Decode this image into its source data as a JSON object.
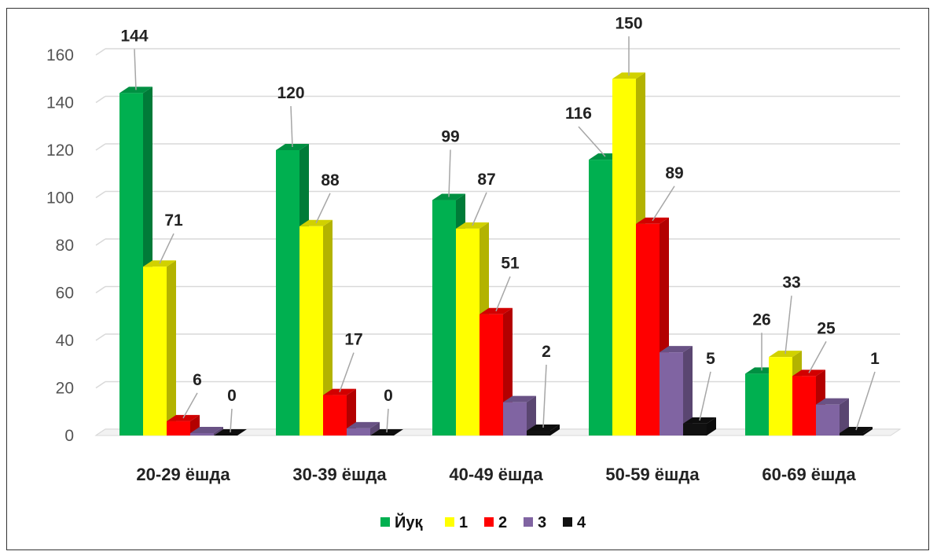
{
  "chart_data": {
    "type": "bar",
    "title": "",
    "xlabel": "",
    "ylabel": "",
    "ylim": [
      0,
      160
    ],
    "yticks": [
      0,
      20,
      40,
      60,
      80,
      100,
      120,
      140,
      160
    ],
    "grid": true,
    "legend_position": "bottom",
    "categories": [
      "20-29 ёшда",
      "30-39 ёшда",
      "40-49 ёшда",
      "50-59 ёшда",
      "60-69 ёшда"
    ],
    "series": [
      {
        "name": "Йуқ",
        "color": "#00b050",
        "values": [
          144,
          120,
          99,
          116,
          26
        ],
        "labels": [
          "144",
          "120",
          "99",
          "116",
          "26"
        ]
      },
      {
        "name": "1",
        "color": "#ffff00",
        "values": [
          71,
          88,
          87,
          150,
          33
        ],
        "labels": [
          "71",
          "88",
          "87",
          "150",
          "33"
        ]
      },
      {
        "name": "2",
        "color": "#ff0000",
        "values": [
          6,
          17,
          51,
          89,
          25
        ],
        "labels": [
          "6",
          "17",
          "51",
          "89",
          "25"
        ]
      },
      {
        "name": "3",
        "color": "#8064a2",
        "values": [
          1,
          3,
          14,
          35,
          13
        ],
        "labels": [
          "",
          "",
          "",
          "",
          ""
        ]
      },
      {
        "name": "4",
        "color": "#111111",
        "values": [
          0,
          0,
          2,
          5,
          1
        ],
        "labels": [
          "0",
          "0",
          "2",
          "5",
          "1"
        ]
      }
    ]
  }
}
